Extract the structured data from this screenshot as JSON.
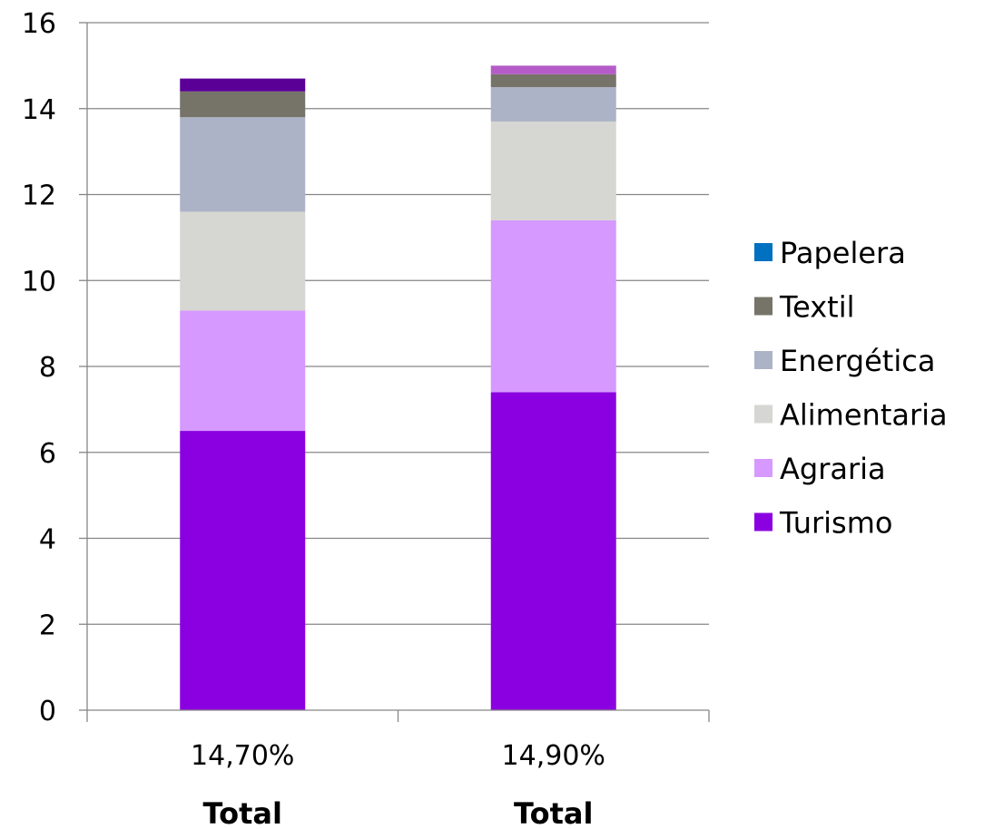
{
  "chart_data": {
    "type": "bar",
    "stacked": true,
    "categories": [
      "14,70%",
      "14,90%"
    ],
    "group_labels": [
      "Total",
      "Total"
    ],
    "ylim": [
      0,
      16
    ],
    "yticks": [
      "0",
      "2",
      "4",
      "6",
      "8",
      "10",
      "12",
      "14",
      "16"
    ],
    "grid": true,
    "legend_position": "right",
    "series": [
      {
        "name": "Turismo",
        "color": "#8B00E0",
        "values": [
          6.5,
          7.4
        ]
      },
      {
        "name": "Agraria",
        "color": "#D699FF",
        "values": [
          2.8,
          4.0
        ]
      },
      {
        "name": "Alimentaria",
        "color": "#D6D6D2",
        "values": [
          2.3,
          2.3
        ]
      },
      {
        "name": "Energética",
        "color": "#ACB3C6",
        "values": [
          2.2,
          0.8
        ]
      },
      {
        "name": "Textil",
        "color": "#767468",
        "values": [
          0.6,
          0.3
        ]
      },
      {
        "name": "Papelera",
        "color": "#0070C0",
        "values": [
          0.3,
          0.2
        ],
        "bar_colors": [
          "#5B0096",
          "#B55CC8"
        ]
      }
    ],
    "legend_order": [
      "Papelera",
      "Textil",
      "Energética",
      "Alimentaria",
      "Agraria",
      "Turismo"
    ]
  }
}
